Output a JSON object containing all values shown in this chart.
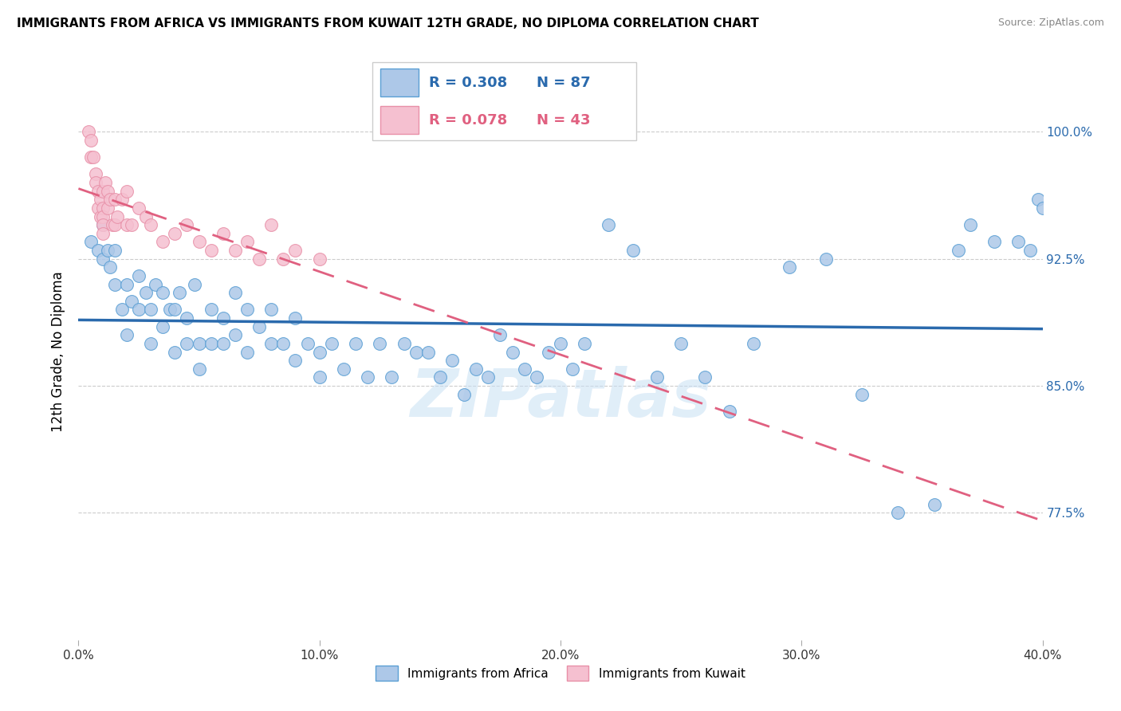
{
  "title": "IMMIGRANTS FROM AFRICA VS IMMIGRANTS FROM KUWAIT 12TH GRADE, NO DIPLOMA CORRELATION CHART",
  "source": "Source: ZipAtlas.com",
  "ylabel_label": "12th Grade, No Diploma",
  "ytick_labels": [
    "100.0%",
    "92.5%",
    "85.0%",
    "77.5%"
  ],
  "ytick_values": [
    1.0,
    0.925,
    0.85,
    0.775
  ],
  "xlim": [
    0.0,
    0.4
  ],
  "ylim": [
    0.7,
    1.04
  ],
  "xtick_positions": [
    0.0,
    0.1,
    0.2,
    0.3,
    0.4
  ],
  "xtick_labels": [
    "0.0%",
    "10.0%",
    "20.0%",
    "30.0%",
    "40.0%"
  ],
  "legend_blue_R": "R = 0.308",
  "legend_blue_N": "N = 87",
  "legend_pink_R": "R = 0.078",
  "legend_pink_N": "N = 43",
  "legend_label_blue": "Immigrants from Africa",
  "legend_label_pink": "Immigrants from Kuwait",
  "blue_color": "#adc8e8",
  "blue_edge_color": "#5a9fd4",
  "blue_line_color": "#2a6aad",
  "pink_color": "#f5c0d0",
  "pink_edge_color": "#e890a8",
  "pink_line_color": "#e06080",
  "watermark": "ZIPatlas",
  "blue_scatter_x": [
    0.005,
    0.008,
    0.01,
    0.01,
    0.012,
    0.013,
    0.015,
    0.015,
    0.018,
    0.02,
    0.02,
    0.022,
    0.025,
    0.025,
    0.028,
    0.03,
    0.03,
    0.032,
    0.035,
    0.035,
    0.038,
    0.04,
    0.04,
    0.042,
    0.045,
    0.045,
    0.048,
    0.05,
    0.05,
    0.055,
    0.055,
    0.06,
    0.06,
    0.065,
    0.065,
    0.07,
    0.07,
    0.075,
    0.08,
    0.08,
    0.085,
    0.09,
    0.09,
    0.095,
    0.1,
    0.1,
    0.105,
    0.11,
    0.115,
    0.12,
    0.125,
    0.13,
    0.135,
    0.14,
    0.145,
    0.15,
    0.155,
    0.16,
    0.165,
    0.17,
    0.175,
    0.18,
    0.185,
    0.19,
    0.195,
    0.2,
    0.205,
    0.21,
    0.22,
    0.23,
    0.24,
    0.25,
    0.26,
    0.27,
    0.28,
    0.295,
    0.31,
    0.325,
    0.34,
    0.355,
    0.365,
    0.37,
    0.38,
    0.39,
    0.395,
    0.398,
    0.4
  ],
  "blue_scatter_y": [
    0.935,
    0.93,
    0.925,
    0.945,
    0.93,
    0.92,
    0.91,
    0.93,
    0.895,
    0.91,
    0.88,
    0.9,
    0.915,
    0.895,
    0.905,
    0.895,
    0.875,
    0.91,
    0.905,
    0.885,
    0.895,
    0.895,
    0.87,
    0.905,
    0.89,
    0.875,
    0.91,
    0.875,
    0.86,
    0.895,
    0.875,
    0.89,
    0.875,
    0.905,
    0.88,
    0.895,
    0.87,
    0.885,
    0.875,
    0.895,
    0.875,
    0.89,
    0.865,
    0.875,
    0.87,
    0.855,
    0.875,
    0.86,
    0.875,
    0.855,
    0.875,
    0.855,
    0.875,
    0.87,
    0.87,
    0.855,
    0.865,
    0.845,
    0.86,
    0.855,
    0.88,
    0.87,
    0.86,
    0.855,
    0.87,
    0.875,
    0.86,
    0.875,
    0.945,
    0.93,
    0.855,
    0.875,
    0.855,
    0.835,
    0.875,
    0.92,
    0.925,
    0.845,
    0.775,
    0.78,
    0.93,
    0.945,
    0.935,
    0.935,
    0.93,
    0.96,
    0.955
  ],
  "pink_scatter_x": [
    0.004,
    0.005,
    0.005,
    0.006,
    0.007,
    0.007,
    0.008,
    0.008,
    0.009,
    0.009,
    0.01,
    0.01,
    0.01,
    0.01,
    0.01,
    0.011,
    0.012,
    0.012,
    0.013,
    0.014,
    0.015,
    0.015,
    0.016,
    0.018,
    0.02,
    0.02,
    0.022,
    0.025,
    0.028,
    0.03,
    0.035,
    0.04,
    0.045,
    0.05,
    0.055,
    0.06,
    0.065,
    0.07,
    0.075,
    0.08,
    0.085,
    0.09,
    0.1
  ],
  "pink_scatter_y": [
    1.0,
    0.995,
    0.985,
    0.985,
    0.975,
    0.97,
    0.965,
    0.955,
    0.96,
    0.95,
    0.965,
    0.955,
    0.95,
    0.945,
    0.94,
    0.97,
    0.965,
    0.955,
    0.96,
    0.945,
    0.96,
    0.945,
    0.95,
    0.96,
    0.945,
    0.965,
    0.945,
    0.955,
    0.95,
    0.945,
    0.935,
    0.94,
    0.945,
    0.935,
    0.93,
    0.94,
    0.93,
    0.935,
    0.925,
    0.945,
    0.925,
    0.93,
    0.925
  ]
}
